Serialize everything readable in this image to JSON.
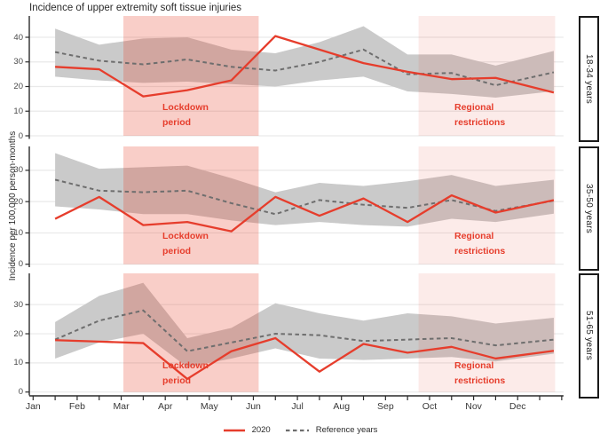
{
  "figure": {
    "title": "Incidence of upper extremity soft tissue injuries",
    "y_axis_title": "Incidence per 100,000 person-months"
  },
  "colors": {
    "line_2020": "#e63d2c",
    "line_reference": "#6e6e6e",
    "ribbon": "#cacaca",
    "band_red": "#e6402c",
    "gridline": "#e9e9e9",
    "axis": "#2a2a2a"
  },
  "chart_data": {
    "type": "line",
    "title": "Incidence of upper extremity soft tissue injuries",
    "ylabel": "Incidence per 100,000 person-months",
    "xlabel": "",
    "grid": "horizontal-only",
    "legend_position": "bottom-center",
    "x_categories": [
      "Jan",
      "Feb",
      "Mar",
      "Apr",
      "May",
      "Jun",
      "Jul",
      "Aug",
      "Sep",
      "Oct",
      "Nov",
      "Dec"
    ],
    "legend": [
      {
        "label": "2020",
        "style": "solid-red"
      },
      {
        "label": "Reference years",
        "style": "dashed-gray"
      }
    ],
    "annotations": [
      {
        "lines": [
          "Lockdown",
          "period"
        ],
        "x_span_months": [
          2.05,
          5.12
        ]
      },
      {
        "lines": [
          "Regional",
          "restrictions"
        ],
        "x_span_months": [
          8.75,
          11.85
        ]
      }
    ],
    "panels": [
      {
        "facet_label": "18-34 years",
        "y_ticks": [
          0,
          10,
          20,
          30,
          40
        ],
        "ylim": [
          0,
          48
        ],
        "series_2020": [
          28,
          27,
          16,
          18.5,
          22.5,
          40.5,
          35,
          29.5,
          26,
          23,
          23.5,
          19
        ],
        "series_reference": [
          34,
          30.5,
          29,
          31,
          28,
          26.5,
          30,
          35,
          25,
          25.5,
          20.5,
          24.5
        ],
        "ribbon_upper": [
          43.5,
          37,
          39.5,
          40,
          35,
          33.5,
          38,
          44.5,
          33,
          33,
          28.5,
          33
        ],
        "ribbon_lower": [
          24,
          22.5,
          21.5,
          22,
          21,
          20,
          22.5,
          24,
          18,
          17,
          15.5,
          17.5
        ]
      },
      {
        "facet_label": "35-50 years",
        "y_ticks": [
          0,
          10,
          20,
          30
        ],
        "ylim": [
          0,
          38
        ],
        "series_2020": [
          14.5,
          21.5,
          12.5,
          13.5,
          10.5,
          21.5,
          15.5,
          21,
          13.5,
          22,
          16.5,
          19.5
        ],
        "series_reference": [
          27,
          23.5,
          23,
          23.5,
          19.5,
          16,
          20.5,
          19,
          18,
          20.5,
          17,
          19.5
        ],
        "ribbon_upper": [
          35.5,
          30.5,
          31,
          31.5,
          27.5,
          23,
          26,
          25,
          26.5,
          28.5,
          25,
          26.5
        ],
        "ribbon_lower": [
          18.5,
          17.5,
          16,
          16,
          14,
          12.5,
          13.5,
          12.5,
          12,
          14.5,
          13.5,
          15.5
        ]
      },
      {
        "facet_label": "51-65 years",
        "y_ticks": [
          0,
          10,
          20,
          30
        ],
        "ylim": [
          0,
          40
        ],
        "series_2020": [
          17.8,
          17.3,
          16.8,
          4.5,
          14,
          18.5,
          7,
          16.5,
          13.5,
          15.5,
          11.5,
          13.5
        ],
        "series_reference": [
          18,
          24.5,
          28,
          14,
          17,
          20,
          19.5,
          17.5,
          18,
          18.5,
          16,
          17.5
        ],
        "ribbon_upper": [
          24,
          33,
          37.5,
          18.5,
          22,
          30.5,
          27,
          24.5,
          27,
          26,
          23.5,
          25
        ],
        "ribbon_lower": [
          11.5,
          17,
          20,
          8.5,
          11.5,
          15,
          11.5,
          11,
          11.5,
          12,
          10.5,
          12.5
        ]
      }
    ]
  }
}
